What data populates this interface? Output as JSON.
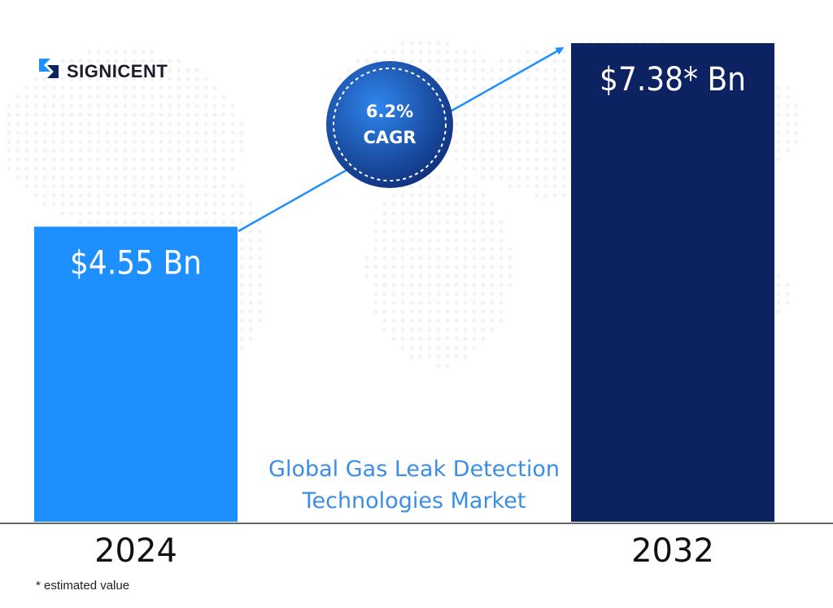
{
  "brand": {
    "name": "SIGNICENT"
  },
  "chart_data": {
    "type": "bar",
    "title": "Global Gas Leak Detection Technologies Market",
    "title_lines": [
      "Global Gas Leak Detection",
      "Technologies Market"
    ],
    "categories": [
      "2024",
      "2032"
    ],
    "values": [
      4.55,
      7.38
    ],
    "value_labels": [
      "$4.55 Bn",
      "$7.38* Bn"
    ],
    "bar_colors": [
      "#1e8fff",
      "#0d2260"
    ],
    "ylim": [
      0,
      7.38
    ],
    "grid": false,
    "annotation": {
      "line1": "6.2%",
      "line2": "CAGR"
    }
  },
  "footnote": "* estimated value",
  "colors": {
    "axis": "#333333",
    "arrow": "#1e8fff",
    "title": "#3a8ee6",
    "badge_light": "#2f86ee",
    "badge_dark": "#0f2f7a"
  }
}
